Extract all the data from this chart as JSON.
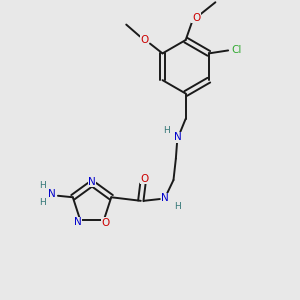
{
  "bg_color": "#e8e8e8",
  "bond_color": "#1a1a1a",
  "N_color": "#0000cc",
  "O_color": "#cc0000",
  "Cl_color": "#33aa33",
  "H_color": "#337777",
  "figsize": [
    3.0,
    3.0
  ],
  "dpi": 100,
  "xlim": [
    0,
    10
  ],
  "ylim": [
    0,
    10
  ]
}
